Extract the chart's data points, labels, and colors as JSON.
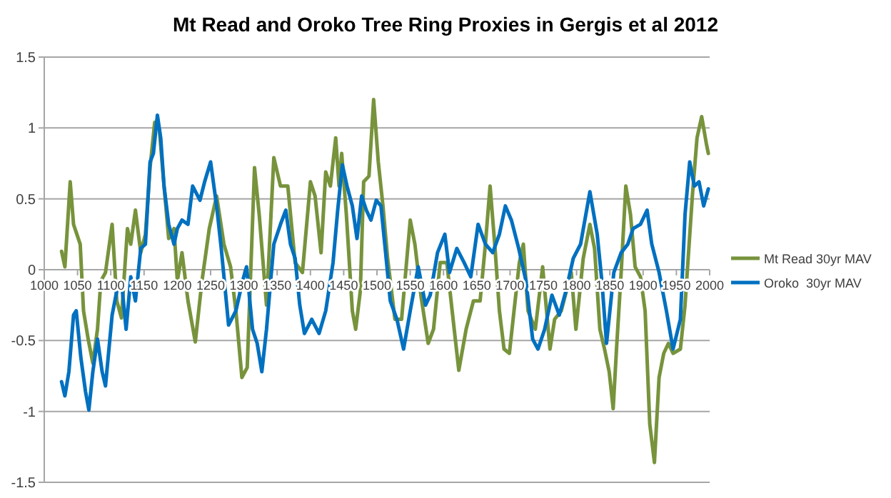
{
  "chart_data": {
    "type": "line",
    "title": "Mt Read and Oroko Tree Ring Proxies in Gergis et al 2012",
    "xlim": [
      1000,
      2000
    ],
    "xticks": [
      1000,
      1050,
      1100,
      1150,
      1200,
      1250,
      1300,
      1350,
      1400,
      1450,
      1500,
      1550,
      1600,
      1650,
      1700,
      1750,
      1800,
      1850,
      1900,
      1950,
      2000
    ],
    "ylim": [
      -1.5,
      1.5
    ],
    "yticks": [
      -1.5,
      -1,
      -0.5,
      0,
      0.5,
      1,
      1.5
    ],
    "grid": "y",
    "legend": "right",
    "marker": "none",
    "line_style": "solid",
    "series": [
      {
        "name": "Mt Read 30yr MAV",
        "color": "#77933c",
        "x": [
          1026,
          1031,
          1039,
          1044,
          1049,
          1054,
          1059,
          1066,
          1073,
          1080,
          1085,
          1092,
          1102,
          1109,
          1116,
          1125,
          1130,
          1137,
          1145,
          1152,
          1159,
          1166,
          1173,
          1180,
          1187,
          1195,
          1200,
          1207,
          1216,
          1227,
          1237,
          1248,
          1259,
          1270,
          1280,
          1288,
          1297,
          1305,
          1316,
          1323,
          1334,
          1345,
          1355,
          1366,
          1377,
          1388,
          1400,
          1407,
          1416,
          1423,
          1430,
          1438,
          1443,
          1447,
          1454,
          1463,
          1468,
          1475,
          1480,
          1488,
          1495,
          1502,
          1509,
          1516,
          1527,
          1537,
          1550,
          1557,
          1566,
          1577,
          1585,
          1595,
          1605,
          1613,
          1623,
          1634,
          1645,
          1655,
          1663,
          1670,
          1677,
          1684,
          1691,
          1699,
          1706,
          1714,
          1720,
          1727,
          1738,
          1749,
          1760,
          1767,
          1777,
          1792,
          1799,
          1810,
          1820,
          1827,
          1835,
          1842,
          1849,
          1855,
          1860,
          1867,
          1874,
          1881,
          1888,
          1896,
          1903,
          1910,
          1917,
          1924,
          1931,
          1938,
          1945,
          1956,
          1963,
          1974,
          1981,
          1988,
          1995,
          1998
        ],
        "values": [
          0.13,
          0.02,
          0.62,
          0.32,
          0.25,
          0.18,
          -0.29,
          -0.49,
          -0.66,
          -0.42,
          -0.08,
          -0.02,
          0.32,
          -0.22,
          -0.34,
          0.29,
          0.18,
          0.42,
          0.12,
          0.25,
          0.72,
          1.04,
          0.99,
          0.59,
          0.22,
          0.29,
          -0.08,
          0.12,
          -0.22,
          -0.51,
          -0.08,
          0.29,
          0.52,
          0.18,
          0.02,
          -0.29,
          -0.76,
          -0.69,
          0.72,
          0.39,
          -0.25,
          0.79,
          0.59,
          0.59,
          0.05,
          -0.02,
          0.62,
          0.52,
          0.12,
          0.69,
          0.59,
          0.93,
          0.59,
          0.82,
          0.39,
          -0.29,
          -0.42,
          -0.15,
          0.62,
          0.66,
          1.2,
          0.76,
          0.45,
          0.08,
          -0.35,
          -0.35,
          0.35,
          0.18,
          -0.18,
          -0.52,
          -0.42,
          0.05,
          0.05,
          -0.29,
          -0.71,
          -0.42,
          -0.22,
          -0.22,
          0.18,
          0.59,
          0.18,
          -0.29,
          -0.56,
          -0.59,
          -0.29,
          0.05,
          0.18,
          -0.29,
          -0.42,
          0.02,
          -0.56,
          -0.35,
          -0.29,
          -0.02,
          -0.42,
          0.08,
          0.32,
          0.15,
          -0.42,
          -0.56,
          -0.72,
          -0.98,
          -0.56,
          -0.02,
          0.59,
          0.39,
          0.02,
          -0.05,
          -0.29,
          -1.09,
          -1.36,
          -0.76,
          -0.59,
          -0.52,
          -0.59,
          -0.56,
          -0.25,
          0.52,
          0.93,
          1.08,
          0.89,
          0.82
        ]
      },
      {
        "name": "Oroko  30yr MAV",
        "color": "#0070c0",
        "x": [
          1026,
          1031,
          1037,
          1044,
          1048,
          1055,
          1062,
          1067,
          1073,
          1080,
          1087,
          1092,
          1102,
          1109,
          1116,
          1123,
          1130,
          1137,
          1145,
          1152,
          1159,
          1164,
          1170,
          1175,
          1180,
          1187,
          1195,
          1200,
          1207,
          1216,
          1223,
          1234,
          1241,
          1250,
          1259,
          1266,
          1277,
          1288,
          1298,
          1304,
          1313,
          1320,
          1327,
          1334,
          1345,
          1355,
          1363,
          1370,
          1377,
          1384,
          1391,
          1402,
          1413,
          1423,
          1434,
          1441,
          1448,
          1455,
          1463,
          1470,
          1477,
          1484,
          1491,
          1499,
          1506,
          1513,
          1520,
          1530,
          1540,
          1550,
          1562,
          1573,
          1580,
          1591,
          1602,
          1609,
          1620,
          1631,
          1641,
          1652,
          1663,
          1674,
          1684,
          1693,
          1702,
          1713,
          1724,
          1734,
          1742,
          1752,
          1763,
          1774,
          1784,
          1795,
          1806,
          1820,
          1831,
          1838,
          1845,
          1856,
          1867,
          1877,
          1885,
          1896,
          1906,
          1913,
          1924,
          1935,
          1945,
          1956,
          1963,
          1970,
          1977,
          1984,
          1991,
          1998
        ],
        "values": [
          -0.79,
          -0.89,
          -0.72,
          -0.32,
          -0.29,
          -0.62,
          -0.86,
          -0.99,
          -0.72,
          -0.49,
          -0.72,
          -0.82,
          -0.32,
          -0.15,
          -0.08,
          -0.42,
          -0.05,
          -0.22,
          0.15,
          0.18,
          0.76,
          0.82,
          1.09,
          0.93,
          0.59,
          0.32,
          0.18,
          0.29,
          0.35,
          0.32,
          0.59,
          0.49,
          0.62,
          0.76,
          0.45,
          0.15,
          -0.39,
          -0.29,
          -0.08,
          0.02,
          -0.42,
          -0.52,
          -0.72,
          -0.42,
          0.18,
          0.32,
          0.42,
          0.18,
          0.08,
          -0.25,
          -0.45,
          -0.35,
          -0.45,
          -0.29,
          0.05,
          0.42,
          0.74,
          0.59,
          0.45,
          0.22,
          0.52,
          0.42,
          0.35,
          0.49,
          0.45,
          0.12,
          -0.22,
          -0.35,
          -0.56,
          -0.29,
          0.02,
          -0.25,
          -0.18,
          0.12,
          0.25,
          -0.02,
          0.15,
          0.05,
          -0.05,
          0.32,
          0.18,
          0.12,
          0.25,
          0.45,
          0.35,
          0.15,
          -0.08,
          -0.49,
          -0.56,
          -0.42,
          -0.18,
          -0.32,
          -0.15,
          0.08,
          0.18,
          0.55,
          0.25,
          -0.08,
          -0.52,
          -0.02,
          0.12,
          0.18,
          0.29,
          0.32,
          0.42,
          0.18,
          -0.02,
          -0.29,
          -0.56,
          -0.35,
          0.39,
          0.76,
          0.59,
          0.62,
          0.45,
          0.57
        ]
      }
    ]
  }
}
